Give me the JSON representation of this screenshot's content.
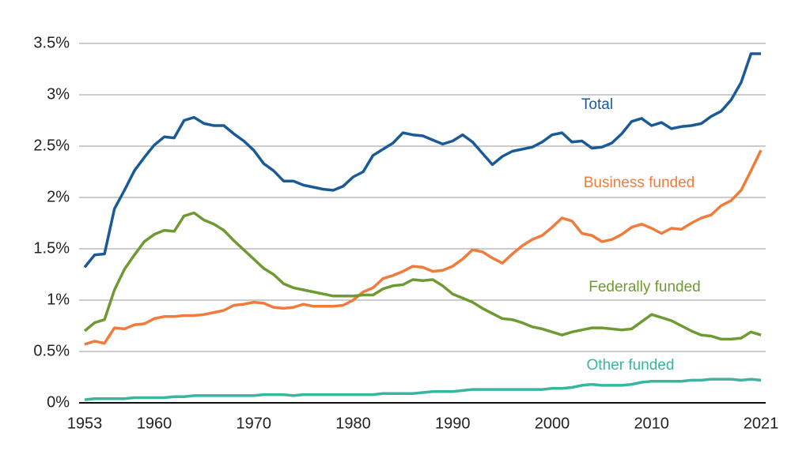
{
  "chart_data": {
    "type": "line",
    "x": [
      1953,
      1954,
      1955,
      1956,
      1957,
      1958,
      1959,
      1960,
      1961,
      1962,
      1963,
      1964,
      1965,
      1966,
      1967,
      1968,
      1969,
      1970,
      1971,
      1972,
      1973,
      1974,
      1975,
      1976,
      1977,
      1978,
      1979,
      1980,
      1981,
      1982,
      1983,
      1984,
      1985,
      1986,
      1987,
      1988,
      1989,
      1990,
      1991,
      1992,
      1993,
      1994,
      1995,
      1996,
      1997,
      1998,
      1999,
      2000,
      2001,
      2002,
      2003,
      2004,
      2005,
      2006,
      2007,
      2008,
      2009,
      2010,
      2011,
      2012,
      2013,
      2014,
      2015,
      2016,
      2017,
      2018,
      2019,
      2020,
      2021
    ],
    "series": [
      {
        "name": "Total",
        "color": "#1a5a96",
        "values": [
          1.32,
          1.44,
          1.45,
          1.89,
          2.07,
          2.26,
          2.39,
          2.51,
          2.59,
          2.58,
          2.75,
          2.78,
          2.72,
          2.7,
          2.7,
          2.62,
          2.55,
          2.46,
          2.33,
          2.26,
          2.16,
          2.16,
          2.12,
          2.1,
          2.08,
          2.07,
          2.11,
          2.2,
          2.25,
          2.41,
          2.47,
          2.53,
          2.63,
          2.61,
          2.6,
          2.56,
          2.52,
          2.55,
          2.61,
          2.54,
          2.43,
          2.32,
          2.4,
          2.45,
          2.47,
          2.49,
          2.54,
          2.61,
          2.63,
          2.54,
          2.55,
          2.48,
          2.49,
          2.53,
          2.62,
          2.74,
          2.77,
          2.7,
          2.73,
          2.67,
          2.69,
          2.7,
          2.72,
          2.79,
          2.84,
          2.95,
          3.12,
          3.4,
          3.4
        ]
      },
      {
        "name": "Business funded",
        "color": "#f07c3c",
        "values": [
          0.57,
          0.6,
          0.58,
          0.73,
          0.72,
          0.76,
          0.77,
          0.82,
          0.84,
          0.84,
          0.85,
          0.85,
          0.86,
          0.88,
          0.9,
          0.95,
          0.96,
          0.98,
          0.97,
          0.93,
          0.92,
          0.93,
          0.96,
          0.94,
          0.94,
          0.94,
          0.95,
          1.0,
          1.08,
          1.12,
          1.21,
          1.24,
          1.28,
          1.33,
          1.32,
          1.28,
          1.29,
          1.33,
          1.4,
          1.49,
          1.47,
          1.41,
          1.36,
          1.45,
          1.53,
          1.59,
          1.63,
          1.71,
          1.8,
          1.77,
          1.65,
          1.63,
          1.57,
          1.59,
          1.64,
          1.71,
          1.74,
          1.7,
          1.65,
          1.7,
          1.69,
          1.75,
          1.8,
          1.83,
          1.92,
          1.97,
          2.07,
          2.26,
          2.46
        ]
      },
      {
        "name": "Federally funded",
        "color": "#6f9a33",
        "values": [
          0.7,
          0.78,
          0.81,
          1.1,
          1.3,
          1.44,
          1.57,
          1.64,
          1.68,
          1.67,
          1.82,
          1.85,
          1.78,
          1.74,
          1.68,
          1.58,
          1.49,
          1.4,
          1.31,
          1.25,
          1.16,
          1.12,
          1.1,
          1.08,
          1.06,
          1.04,
          1.04,
          1.04,
          1.05,
          1.05,
          1.11,
          1.14,
          1.15,
          1.2,
          1.19,
          1.2,
          1.14,
          1.06,
          1.02,
          0.98,
          0.92,
          0.87,
          0.82,
          0.81,
          0.78,
          0.74,
          0.72,
          0.69,
          0.66,
          0.69,
          0.71,
          0.73,
          0.73,
          0.72,
          0.71,
          0.72,
          0.79,
          0.86,
          0.83,
          0.8,
          0.75,
          0.7,
          0.66,
          0.65,
          0.62,
          0.62,
          0.63,
          0.69,
          0.66
        ]
      },
      {
        "name": "Other funded",
        "color": "#3ab5a0",
        "values": [
          0.03,
          0.04,
          0.04,
          0.04,
          0.04,
          0.05,
          0.05,
          0.05,
          0.05,
          0.06,
          0.06,
          0.07,
          0.07,
          0.07,
          0.07,
          0.07,
          0.07,
          0.07,
          0.08,
          0.08,
          0.08,
          0.07,
          0.08,
          0.08,
          0.08,
          0.08,
          0.08,
          0.08,
          0.08,
          0.08,
          0.09,
          0.09,
          0.09,
          0.09,
          0.1,
          0.11,
          0.11,
          0.11,
          0.12,
          0.13,
          0.13,
          0.13,
          0.13,
          0.13,
          0.13,
          0.13,
          0.13,
          0.14,
          0.14,
          0.15,
          0.17,
          0.18,
          0.17,
          0.17,
          0.17,
          0.18,
          0.2,
          0.21,
          0.21,
          0.21,
          0.21,
          0.22,
          0.22,
          0.23,
          0.23,
          0.23,
          0.22,
          0.23,
          0.22
        ]
      }
    ],
    "xlim": [
      1953,
      2021
    ],
    "xticks": [
      1953,
      1960,
      1970,
      1980,
      1990,
      2000,
      2010,
      2021
    ],
    "ylim": [
      0,
      3.5
    ],
    "yticks": [
      {
        "value": 0,
        "label": "0%"
      },
      {
        "value": 0.5,
        "label": "0.5%"
      },
      {
        "value": 1,
        "label": "1%"
      },
      {
        "value": 1.5,
        "label": "1.5%"
      },
      {
        "value": 2,
        "label": "2%"
      },
      {
        "value": 2.5,
        "label": "2.5%"
      },
      {
        "value": 3,
        "label": "3%"
      },
      {
        "value": 3.5,
        "label": "3.5%"
      }
    ],
    "grid": true
  }
}
